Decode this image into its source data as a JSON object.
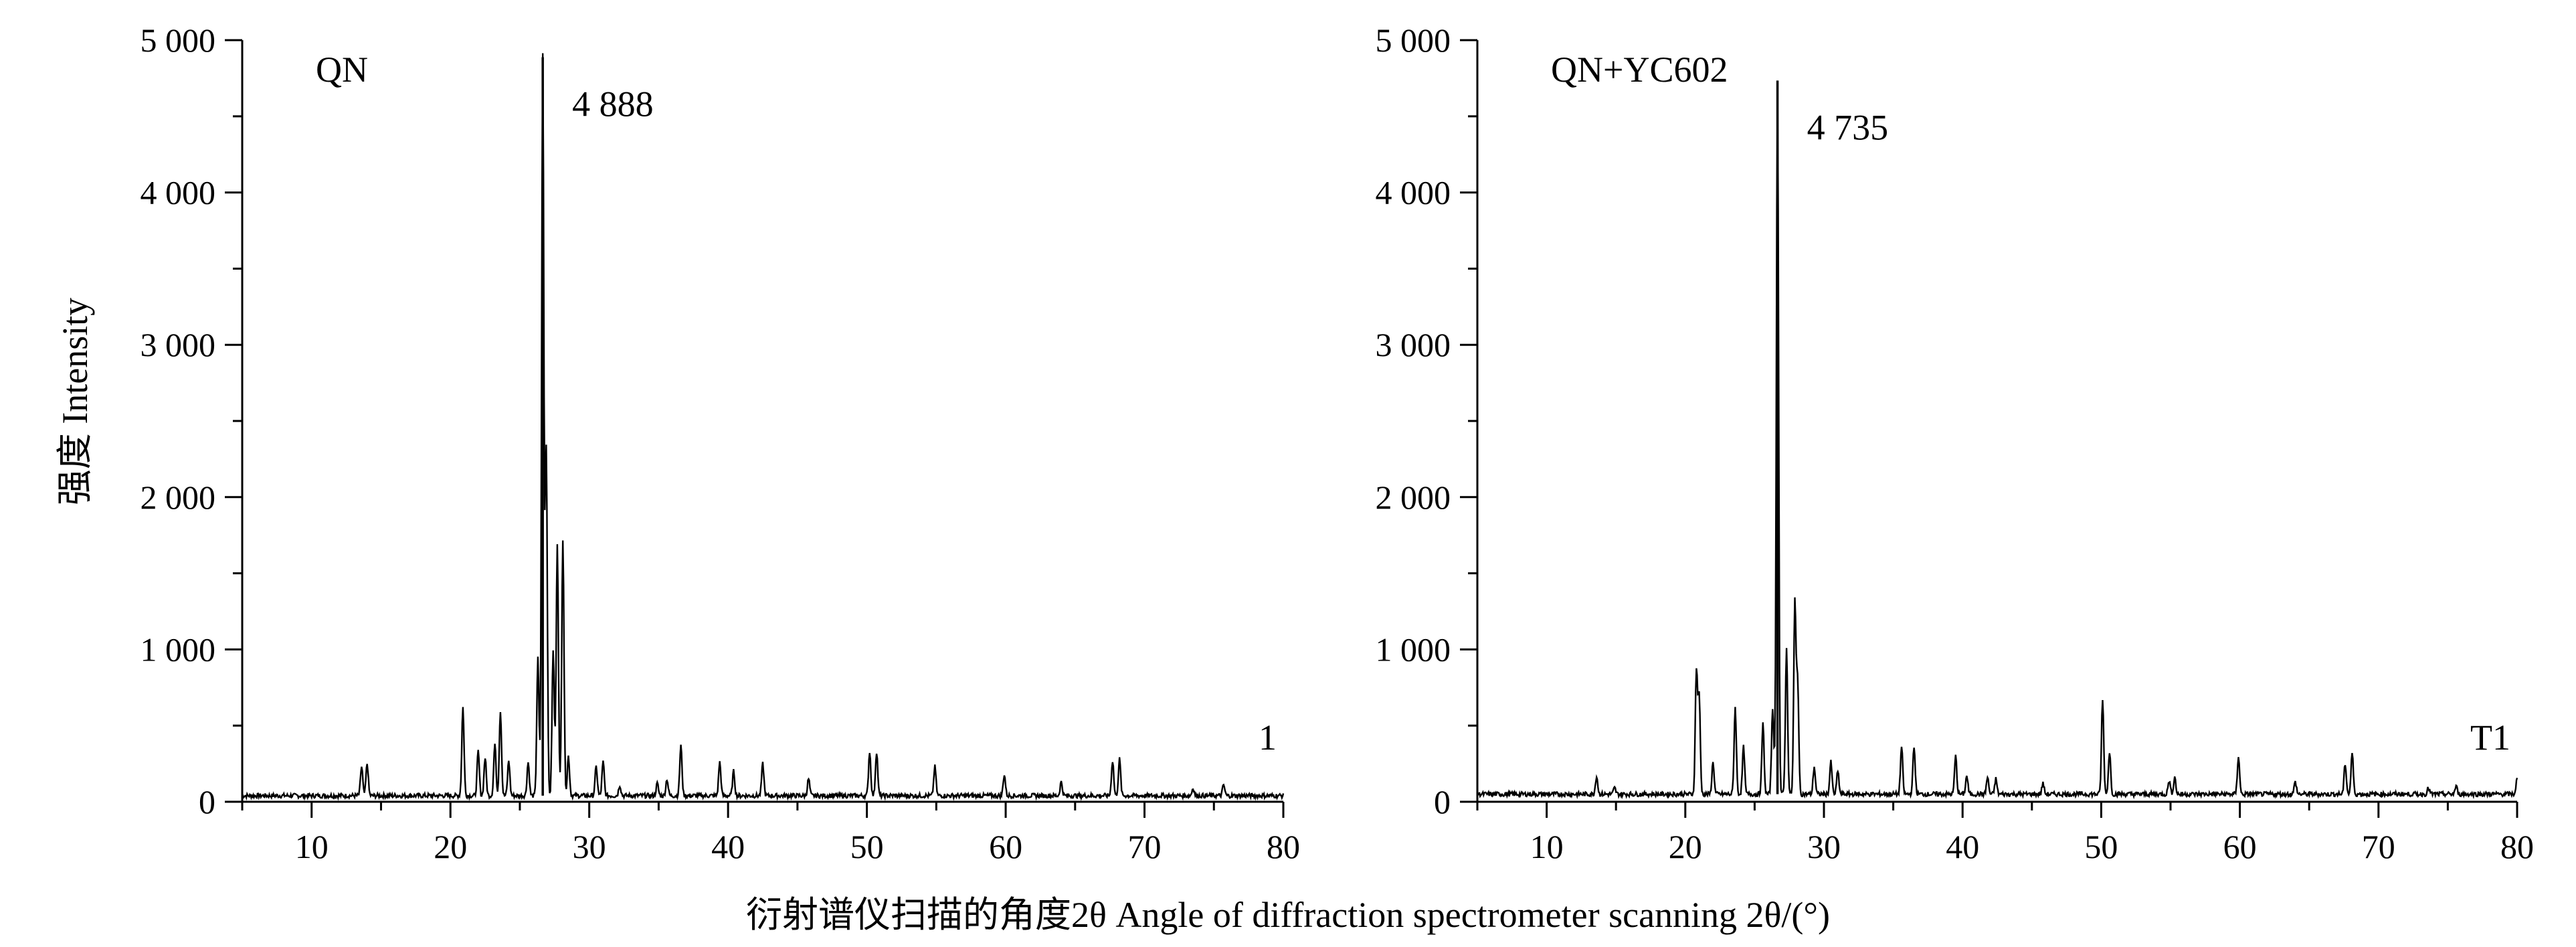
{
  "figure": {
    "ylabel": "强度 Intensity",
    "xlabel": "衍射谱仪扫描的角度2θ Angle of diffraction spectrometer scanning 2θ/(°)"
  },
  "chart_data": [
    {
      "type": "line",
      "title": "QN",
      "corner_label": "1",
      "peak_label": "4 888",
      "peak": {
        "x": 26.65,
        "y": 4888
      },
      "xlim": [
        5,
        80
      ],
      "ylim": [
        0,
        5000
      ],
      "x_ticks": [
        10,
        20,
        30,
        40,
        50,
        60,
        70,
        80
      ],
      "y_ticks": [
        0,
        1000,
        2000,
        3000,
        4000,
        5000
      ],
      "x_tick_labels": [
        "10",
        "20",
        "30",
        "40",
        "50",
        "60",
        "70",
        "80"
      ],
      "y_tick_labels": [
        "0",
        "1 000",
        "2 000",
        "3 000",
        "4 000",
        "5 000"
      ],
      "baseline": 40,
      "peaks": [
        [
          13.6,
          230
        ],
        [
          14.0,
          250
        ],
        [
          20.9,
          620
        ],
        [
          22.0,
          330
        ],
        [
          22.5,
          290
        ],
        [
          23.2,
          380
        ],
        [
          23.6,
          600
        ],
        [
          24.2,
          270
        ],
        [
          25.6,
          260
        ],
        [
          26.3,
          940
        ],
        [
          26.65,
          4888
        ],
        [
          26.9,
          2320
        ],
        [
          27.4,
          1000
        ],
        [
          27.7,
          1680
        ],
        [
          28.1,
          1730
        ],
        [
          28.5,
          300
        ],
        [
          30.5,
          230
        ],
        [
          31.0,
          260
        ],
        [
          32.2,
          110
        ],
        [
          34.9,
          120
        ],
        [
          35.6,
          150
        ],
        [
          36.6,
          370
        ],
        [
          39.4,
          260
        ],
        [
          40.4,
          200
        ],
        [
          42.5,
          250
        ],
        [
          45.8,
          150
        ],
        [
          50.2,
          330
        ],
        [
          50.7,
          330
        ],
        [
          54.9,
          230
        ],
        [
          59.9,
          180
        ],
        [
          64.0,
          130
        ],
        [
          67.7,
          270
        ],
        [
          68.2,
          280
        ],
        [
          73.5,
          90
        ],
        [
          75.7,
          110
        ]
      ]
    },
    {
      "type": "line",
      "title": "QN+YC602",
      "corner_label": "T1",
      "peak_label": "4 735",
      "peak": {
        "x": 26.65,
        "y": 4735
      },
      "xlim": [
        5,
        80
      ],
      "ylim": [
        0,
        5000
      ],
      "x_ticks": [
        10,
        20,
        30,
        40,
        50,
        60,
        70,
        80
      ],
      "y_ticks": [
        0,
        1000,
        2000,
        3000,
        4000,
        5000
      ],
      "x_tick_labels": [
        "10",
        "20",
        "30",
        "40",
        "50",
        "60",
        "70",
        "80"
      ],
      "y_tick_labels": [
        "0",
        "1 000",
        "2 000",
        "3 000",
        "4 000",
        "5 000"
      ],
      "baseline": 50,
      "peaks": [
        [
          13.6,
          170
        ],
        [
          14.9,
          90
        ],
        [
          20.8,
          860
        ],
        [
          21.0,
          680
        ],
        [
          22.0,
          260
        ],
        [
          23.6,
          620
        ],
        [
          24.2,
          360
        ],
        [
          25.6,
          510
        ],
        [
          26.3,
          620
        ],
        [
          26.65,
          4735
        ],
        [
          27.3,
          1000
        ],
        [
          27.9,
          1300
        ],
        [
          28.1,
          800
        ],
        [
          29.3,
          230
        ],
        [
          30.5,
          260
        ],
        [
          31.0,
          200
        ],
        [
          35.6,
          360
        ],
        [
          36.5,
          360
        ],
        [
          39.5,
          300
        ],
        [
          40.3,
          170
        ],
        [
          41.8,
          160
        ],
        [
          42.4,
          150
        ],
        [
          45.8,
          120
        ],
        [
          50.1,
          670
        ],
        [
          50.6,
          330
        ],
        [
          54.9,
          140
        ],
        [
          55.3,
          160
        ],
        [
          59.9,
          300
        ],
        [
          64.0,
          130
        ],
        [
          67.6,
          250
        ],
        [
          68.1,
          320
        ],
        [
          73.6,
          90
        ],
        [
          75.6,
          100
        ],
        [
          80.0,
          150
        ]
      ]
    }
  ]
}
